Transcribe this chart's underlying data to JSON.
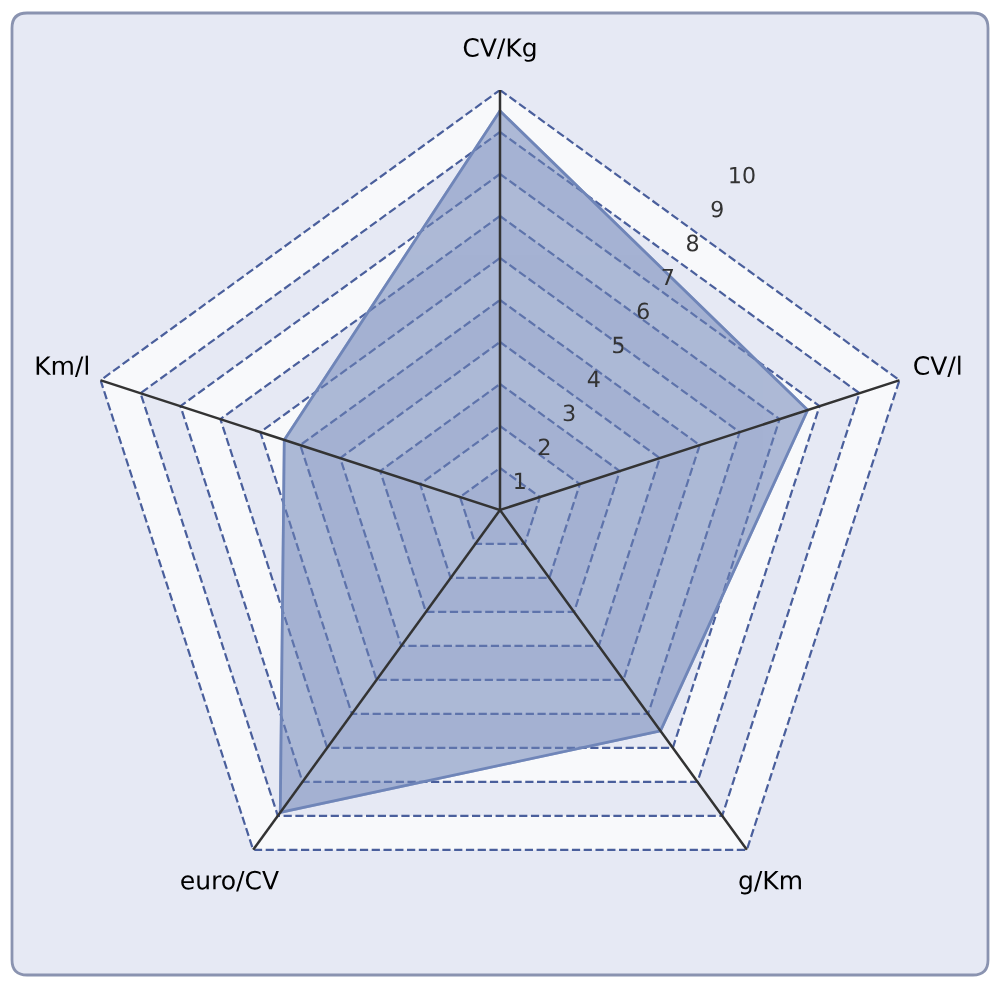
{
  "chart_data": {
    "type": "radar",
    "categories": [
      "CV/Kg",
      "CV/l",
      "g/Km",
      "euro/CV",
      "Km/l"
    ],
    "series": [
      {
        "color": "#6f85b8",
        "values": [
          9.5,
          7.7,
          6.5,
          8.9,
          5.4
        ]
      }
    ],
    "ylim": [
      0,
      10
    ],
    "yticks": [
      1,
      2,
      3,
      4,
      5,
      6,
      7,
      8,
      9,
      10
    ],
    "grid": true,
    "line_style": "dashed"
  }
}
